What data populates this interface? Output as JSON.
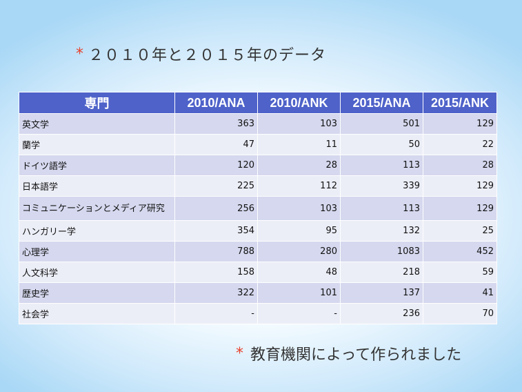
{
  "title": {
    "bullet": "*",
    "text": "２０１０年と２０１５年のデータ"
  },
  "table": {
    "headers": [
      "専門",
      "2010/ANA",
      "2010/ANK",
      "2015/ANA",
      "2015/ANK"
    ],
    "rows": [
      [
        "英文学",
        "363",
        "103",
        "501",
        "129"
      ],
      [
        "蘭学",
        "47",
        "11",
        "50",
        "22"
      ],
      [
        "ドイツ語学",
        "120",
        "28",
        "113",
        "28"
      ],
      [
        "日本語学",
        "225",
        "112",
        "339",
        "129"
      ],
      [
        "コミュニケーションとメディア研究",
        "256",
        "103",
        "113",
        "129"
      ],
      [
        "ハンガリー学",
        "354",
        "95",
        "132",
        "25"
      ],
      [
        "心理学",
        "788",
        "280",
        "1083",
        "452"
      ],
      [
        "人文科学",
        "158",
        "48",
        "218",
        "59"
      ],
      [
        "歴史学",
        "322",
        "101",
        "137",
        "41"
      ],
      [
        "社会学",
        "-",
        "-",
        "236",
        "70"
      ]
    ]
  },
  "footnote": {
    "bullet": "*",
    "text": "教育機関によって作られました"
  },
  "colors": {
    "header_bg": "#4e62c9",
    "row_odd": "#d5d8ee",
    "row_even": "#eceef7",
    "bullet": "#e8412b"
  }
}
